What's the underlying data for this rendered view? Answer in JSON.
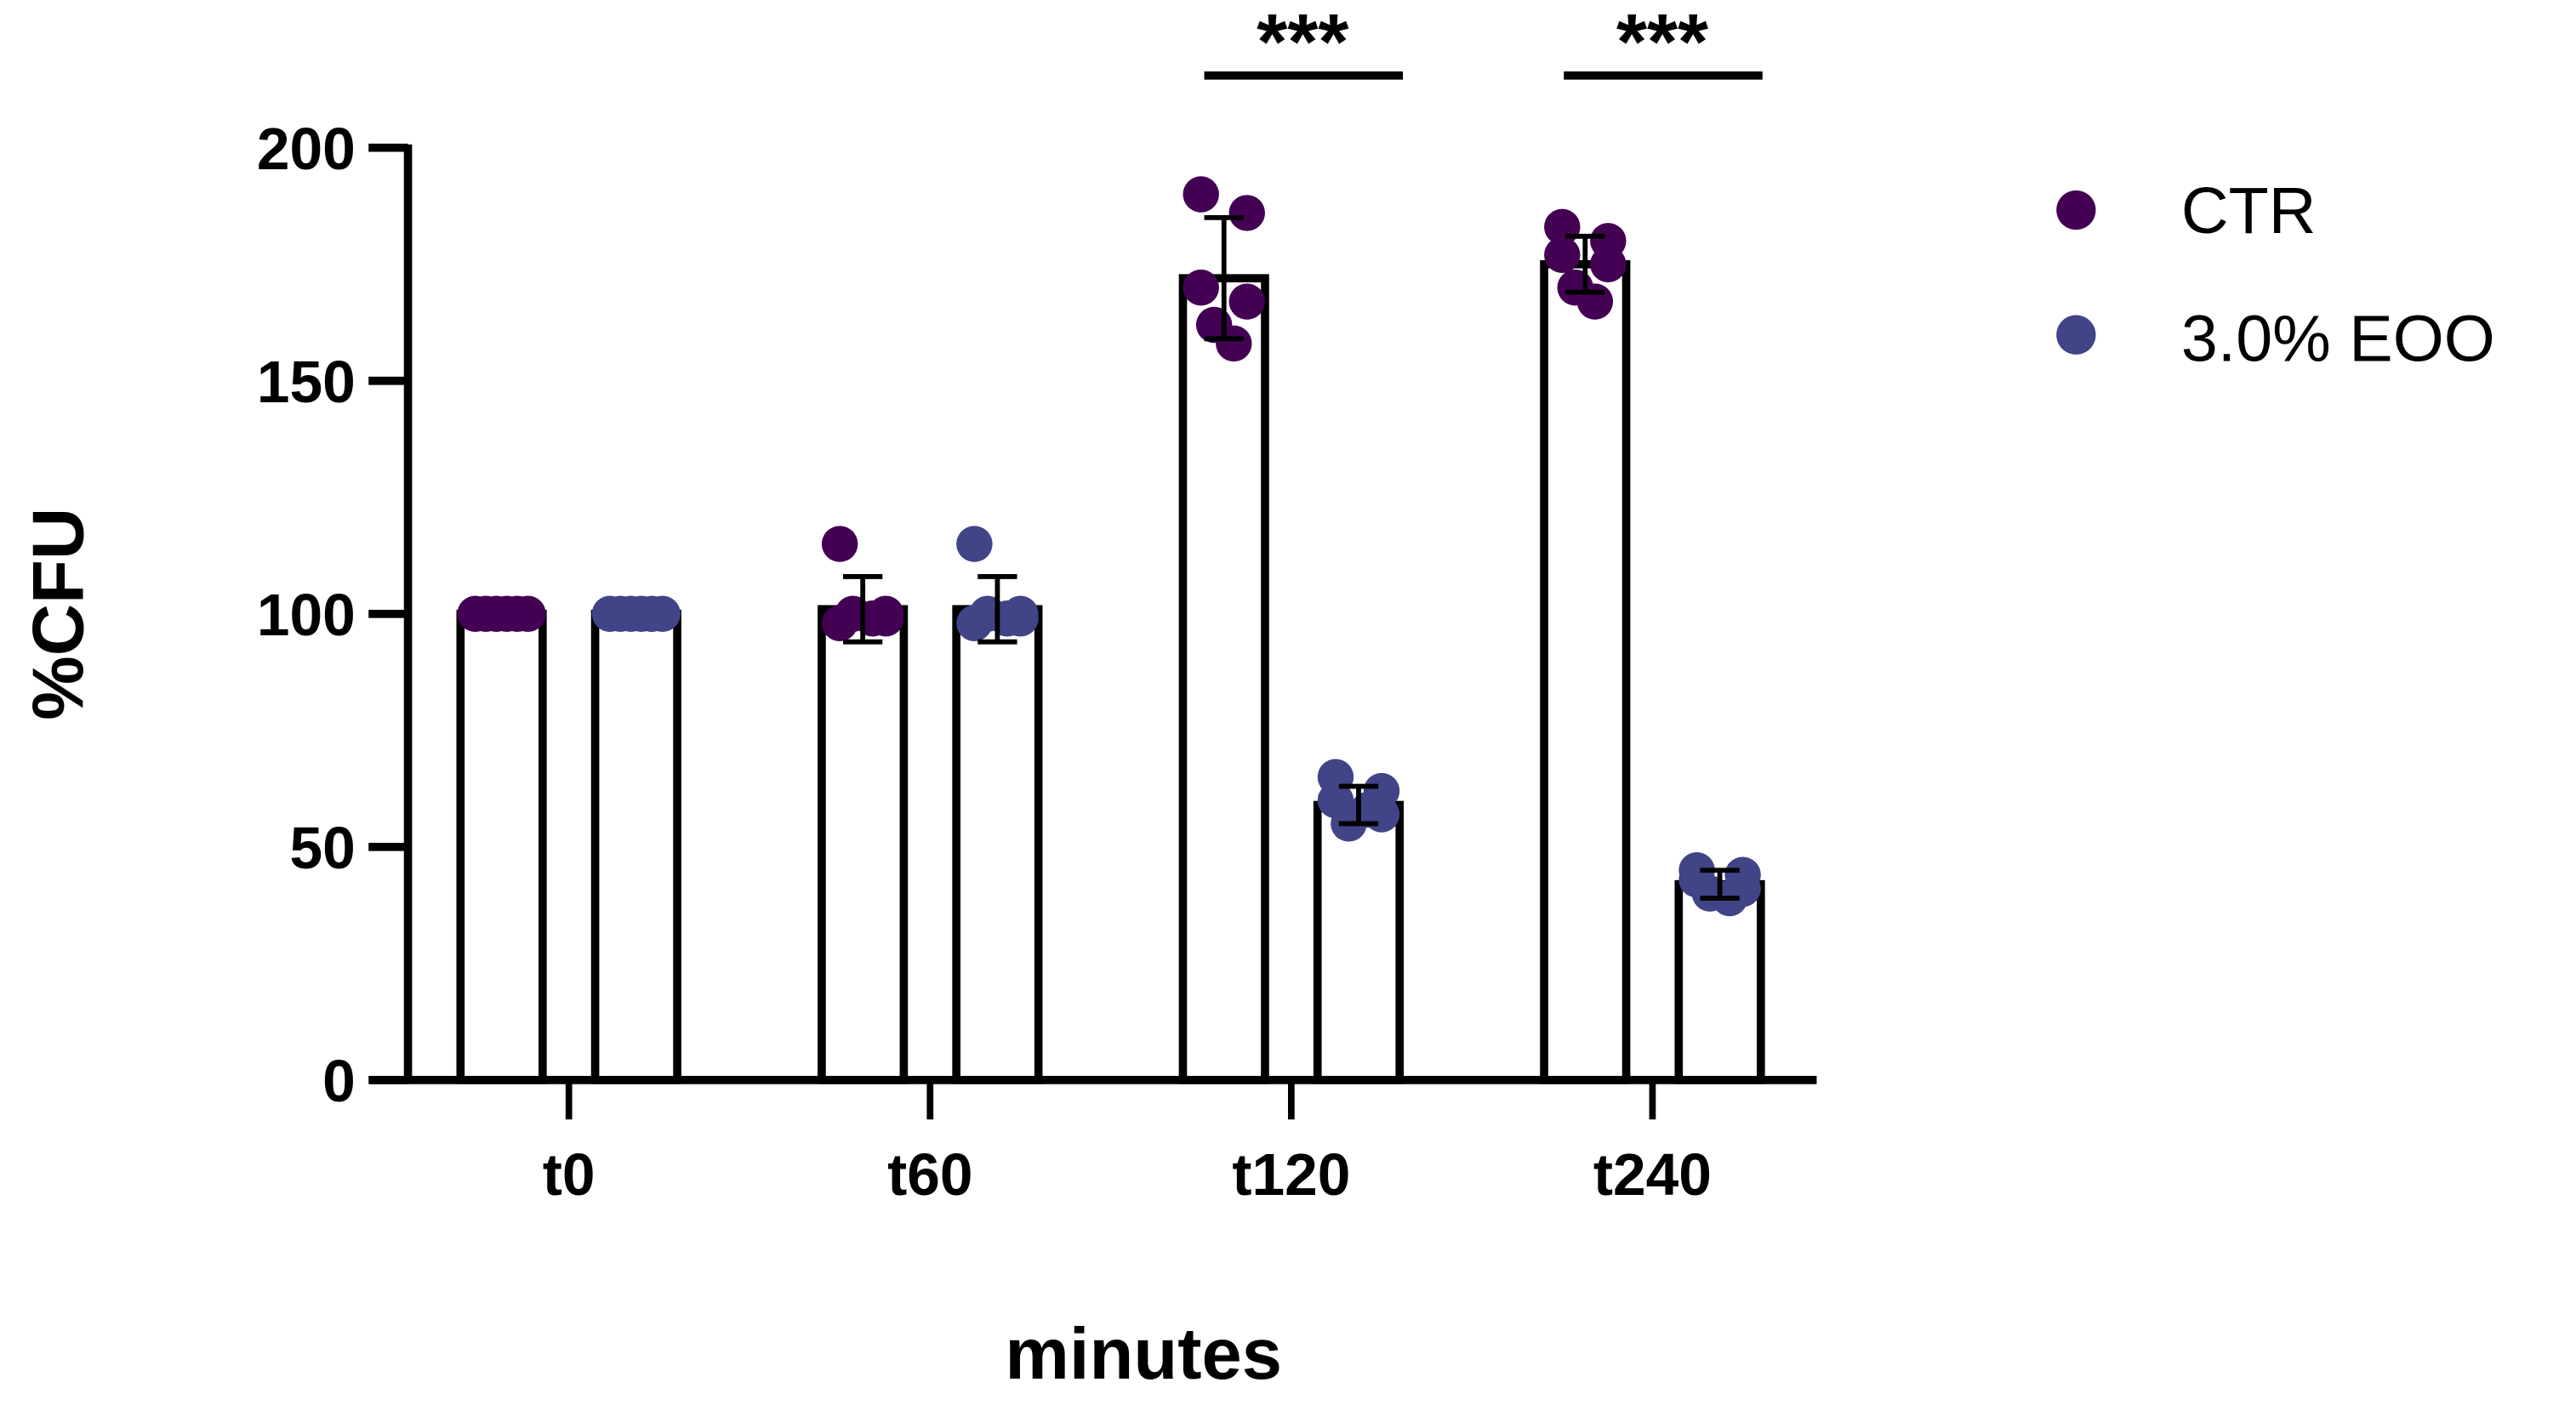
{
  "chart_data": {
    "type": "bar",
    "title": "",
    "xlabel": "minutes",
    "ylabel": "%CFU",
    "ylim": [
      0,
      200
    ],
    "yticks": [
      0,
      50,
      100,
      150,
      200
    ],
    "grid": false,
    "legend_position": "right",
    "categories": [
      "t0",
      "t60",
      "t120",
      "t240"
    ],
    "series": [
      {
        "name": "CTR",
        "color": "#440154",
        "values": [
          100,
          101,
          172,
          175
        ],
        "error": [
          0,
          7,
          13,
          6
        ],
        "points": [
          [
            100,
            100,
            100,
            100,
            100,
            100
          ],
          [
            115,
            100,
            98,
            99,
            100,
            99
          ],
          [
            190,
            186,
            170,
            167,
            162,
            158
          ],
          [
            183,
            180,
            177,
            175,
            170,
            167
          ]
        ]
      },
      {
        "name": "3.0% EOO",
        "color": "#414487",
        "values": [
          100,
          101,
          59,
          42
        ],
        "error": [
          0,
          7,
          4,
          3
        ],
        "points": [
          [
            100,
            100,
            100,
            100,
            100,
            100
          ],
          [
            115,
            100,
            98,
            99,
            100,
            99
          ],
          [
            65,
            62,
            60,
            57,
            55,
            58
          ],
          [
            45,
            44,
            43,
            41,
            40,
            39
          ]
        ]
      }
    ],
    "annotations": [
      {
        "text": "***",
        "between": [
          "CTR",
          "3.0% EOO"
        ],
        "category": "t120"
      },
      {
        "text": "***",
        "between": [
          "CTR",
          "3.0% EOO"
        ],
        "category": "t240"
      }
    ]
  },
  "legend": {
    "items": [
      {
        "label": "CTR",
        "color": "#440154"
      },
      {
        "label": "3.0% EOO",
        "color": "#414487"
      }
    ]
  },
  "axes": {
    "y_title": "%CFU",
    "x_title": "minutes",
    "y_tick_labels": [
      "0",
      "50",
      "100",
      "150",
      "200"
    ],
    "x_tick_labels": [
      "t0",
      "t60",
      "t120",
      "t240"
    ]
  },
  "significance": [
    "***",
    "***"
  ]
}
